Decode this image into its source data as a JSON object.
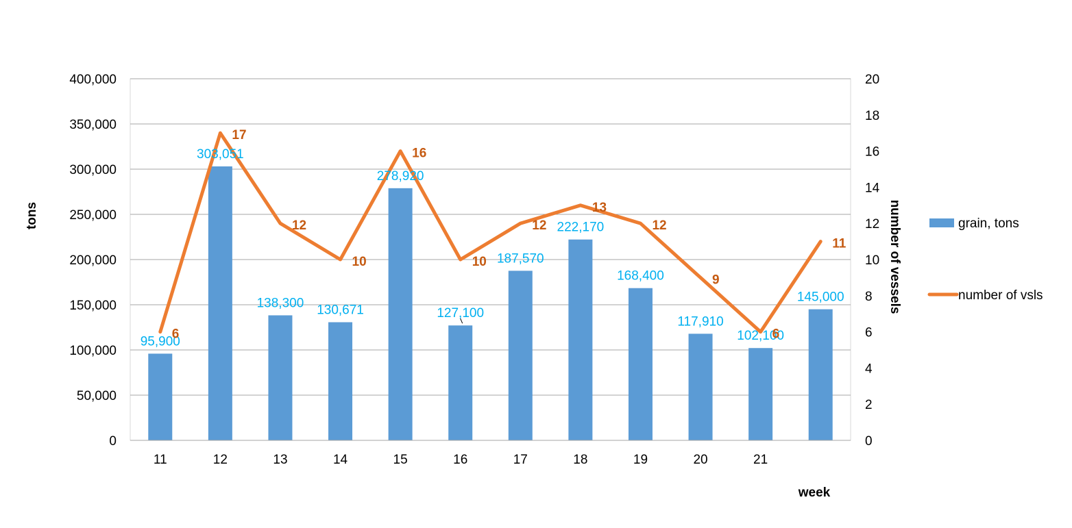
{
  "chart_data": {
    "type": "bar",
    "title": "",
    "categories": [
      "11",
      "12",
      "13",
      "14",
      "15",
      "16",
      "17",
      "18",
      "19",
      "20",
      "21",
      ""
    ],
    "xlabel": "week",
    "ylabel": "tons",
    "y2label": "number of vessels",
    "ylim": [
      0,
      400000
    ],
    "y2lim": [
      0,
      20
    ],
    "yticks": [
      "0",
      "50,000",
      "100,000",
      "150,000",
      "200,000",
      "250,000",
      "300,000",
      "350,000",
      "400,000"
    ],
    "y2ticks": [
      "0",
      "2",
      "4",
      "6",
      "8",
      "10",
      "12",
      "14",
      "16",
      "18",
      "20"
    ],
    "grid": true,
    "legend_position": "right",
    "series": [
      {
        "name": "grain, tons",
        "type": "bar",
        "axis": "left",
        "color": "#5B9BD5",
        "label_color": "#00B0F0",
        "values": [
          95900,
          303051,
          138300,
          130671,
          278920,
          127100,
          187570,
          222170,
          168400,
          117910,
          102100,
          145000
        ],
        "labels": [
          "95,900",
          "303,051",
          "138,300",
          "130,671",
          "278,920",
          "127,100",
          "187,570",
          "222,170",
          "168,400",
          "117,910",
          "102,100",
          "145,000"
        ]
      },
      {
        "name": "number of vsls",
        "type": "line",
        "axis": "right",
        "color": "#ED7D31",
        "label_color": "#C55A11",
        "values": [
          6,
          17,
          12,
          10,
          16,
          10,
          12,
          13,
          12,
          9,
          6,
          11
        ],
        "labels": [
          "6",
          "17",
          "12",
          "10",
          "16",
          "10",
          "12",
          "13",
          "12",
          "9",
          "6",
          "11"
        ]
      }
    ]
  }
}
